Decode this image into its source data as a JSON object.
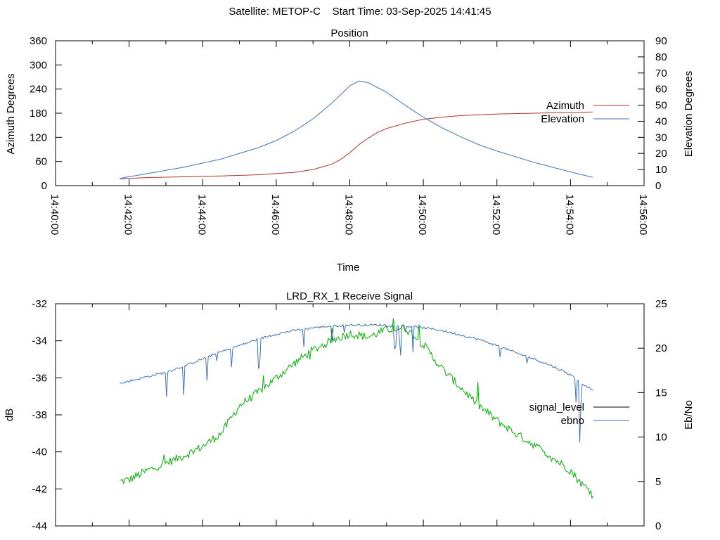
{
  "header": {
    "satellite": "Satellite: METOP-C",
    "start_time": "Start Time: 03-Sep-2025 14:41:45"
  },
  "chart_data": [
    {
      "type": "line",
      "title": "Position",
      "xlabel": "Time",
      "ylabel": "Azimuth Degrees",
      "y2label": "Elevation Degrees",
      "xlim": [
        "14:40:00",
        "14:56:00"
      ],
      "ylim": [
        0,
        360
      ],
      "y2lim": [
        0,
        90
      ],
      "xticks": [
        "14:40:00",
        "14:42:00",
        "14:44:00",
        "14:46:00",
        "14:48:00",
        "14:50:00",
        "14:52:00",
        "14:54:00",
        "14:56:00"
      ],
      "yticks": [
        "0",
        "60",
        "120",
        "180",
        "240",
        "300",
        "360"
      ],
      "y2ticks": [
        "0",
        "10",
        "20",
        "30",
        "40",
        "50",
        "60",
        "70",
        "80",
        "90"
      ],
      "legend_position": "right",
      "grid": false,
      "series": [
        {
          "name": "Azimuth",
          "axis": "left",
          "color": "#b0302a",
          "x": [
            "14:41:45",
            "14:42:30",
            "14:43:30",
            "14:44:30",
            "14:45:30",
            "14:46:30",
            "14:47:00",
            "14:47:30",
            "14:47:45",
            "14:48:00",
            "14:48:15",
            "14:48:30",
            "14:48:45",
            "14:49:00",
            "14:49:30",
            "14:50:00",
            "14:50:30",
            "14:51:00",
            "14:52:00",
            "14:53:00",
            "14:54:00",
            "14:54:38"
          ],
          "values": [
            17,
            20,
            22,
            24,
            27,
            33,
            40,
            53,
            65,
            82,
            102,
            118,
            132,
            142,
            155,
            165,
            170,
            174,
            178,
            180,
            182,
            183
          ]
        },
        {
          "name": "Elevation",
          "axis": "right",
          "color": "#3f72b4",
          "x": [
            "14:41:45",
            "14:42:30",
            "14:43:30",
            "14:44:30",
            "14:45:30",
            "14:46:00",
            "14:46:30",
            "14:47:00",
            "14:47:30",
            "14:48:00",
            "14:48:15",
            "14:48:30",
            "14:49:00",
            "14:49:30",
            "14:50:00",
            "14:50:30",
            "14:51:00",
            "14:51:30",
            "14:52:00",
            "14:53:00",
            "14:54:00",
            "14:54:38"
          ],
          "values": [
            4.5,
            7.5,
            11.5,
            16.5,
            23.5,
            28,
            34,
            41.5,
            51,
            62,
            65,
            64,
            58,
            50,
            42.5,
            36,
            30.5,
            25.5,
            21.5,
            14.5,
            8.5,
            5
          ]
        }
      ]
    },
    {
      "type": "line",
      "title": "LRD_RX_1 Receive Signal",
      "ylabel": "dB",
      "y2label": "Eb/No",
      "xlim": [
        "14:40:00",
        "14:56:00"
      ],
      "ylim": [
        -44,
        -32
      ],
      "y2lim": [
        0,
        25
      ],
      "yticks": [
        "-32",
        "-34",
        "-36",
        "-38",
        "-40",
        "-42",
        "-44"
      ],
      "y2ticks": [
        "0",
        "5",
        "10",
        "15",
        "20",
        "25"
      ],
      "legend_position": "right",
      "grid": false,
      "series": [
        {
          "name": "signal_level",
          "axis": "left",
          "color": "#00b000",
          "x": [
            "14:41:45",
            "14:42:00",
            "14:42:30",
            "14:43:00",
            "14:43:30",
            "14:44:00",
            "14:44:30",
            "14:45:00",
            "14:45:30",
            "14:46:00",
            "14:46:30",
            "14:47:00",
            "14:47:30",
            "14:48:00",
            "14:48:30",
            "14:49:00",
            "14:49:30",
            "14:50:00",
            "14:50:30",
            "14:51:00",
            "14:51:30",
            "14:52:00",
            "14:52:30",
            "14:53:00",
            "14:53:30",
            "14:54:00",
            "14:54:20",
            "14:54:38"
          ],
          "values": [
            -41.6,
            -41.5,
            -41.0,
            -40.6,
            -40.2,
            -39.7,
            -39.0,
            -37.5,
            -36.8,
            -36.0,
            -35.2,
            -34.5,
            -34.0,
            -33.6,
            -33.8,
            -33.4,
            -33.3,
            -34.2,
            -35.5,
            -36.5,
            -37.5,
            -38.3,
            -39.0,
            -39.6,
            -40.3,
            -41.0,
            -41.8,
            -42.2
          ]
        },
        {
          "name": "ebno",
          "axis": "right",
          "color": "#3f72b4",
          "x": [
            "14:41:45",
            "14:42:00",
            "14:42:30",
            "14:43:00",
            "14:43:30",
            "14:44:00",
            "14:44:30",
            "14:45:00",
            "14:45:30",
            "14:46:00",
            "14:46:30",
            "14:47:00",
            "14:47:30",
            "14:48:00",
            "14:48:30",
            "14:49:00",
            "14:49:30",
            "14:50:00",
            "14:50:30",
            "14:51:00",
            "14:51:30",
            "14:52:00",
            "14:52:30",
            "14:53:00",
            "14:53:30",
            "14:54:00",
            "14:54:20",
            "14:54:38"
          ],
          "values": [
            16.0,
            16.3,
            16.8,
            17.3,
            18.0,
            18.8,
            19.6,
            20.3,
            21.0,
            21.6,
            22.0,
            22.3,
            22.5,
            22.6,
            22.6,
            22.6,
            22.5,
            22.3,
            22.0,
            21.5,
            21.0,
            20.3,
            19.5,
            18.8,
            18.0,
            17.0,
            16.0,
            15.2
          ]
        }
      ]
    }
  ]
}
